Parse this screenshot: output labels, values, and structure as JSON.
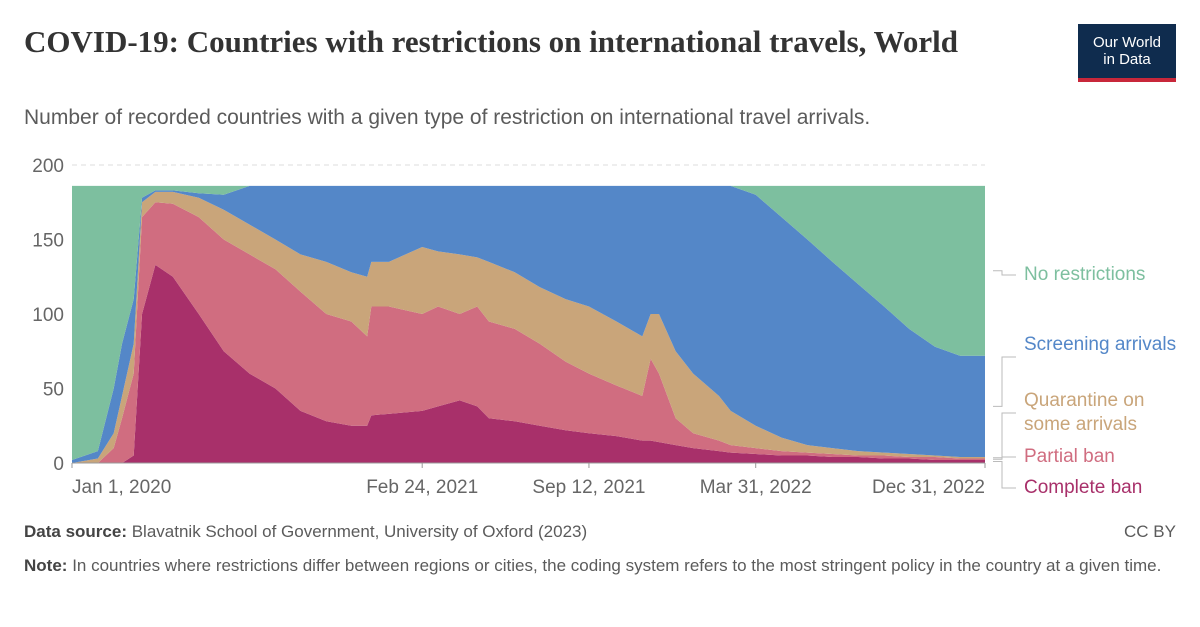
{
  "header": {
    "title": "COVID-19: Countries with restrictions on international travels, World",
    "subtitle": "Number of recorded countries with a given type of restriction on international travel arrivals.",
    "logo": "Our World in Data"
  },
  "chart_data": {
    "type": "stacked-area",
    "x": [
      "2020-01-01",
      "2020-02-01",
      "2020-02-20",
      "2020-03-01",
      "2020-03-15",
      "2020-03-25",
      "2020-04-10",
      "2020-05-01",
      "2020-06-01",
      "2020-07-01",
      "2020-08-01",
      "2020-09-01",
      "2020-10-01",
      "2020-11-01",
      "2020-12-01",
      "2020-12-20",
      "2020-12-25",
      "2021-01-15",
      "2021-02-24",
      "2021-03-15",
      "2021-04-10",
      "2021-05-01",
      "2021-05-15",
      "2021-06-15",
      "2021-07-15",
      "2021-08-15",
      "2021-09-12",
      "2021-10-15",
      "2021-11-15",
      "2021-11-25",
      "2021-12-05",
      "2021-12-25",
      "2022-01-15",
      "2022-02-15",
      "2022-03-01",
      "2022-03-31",
      "2022-05-01",
      "2022-06-01",
      "2022-07-01",
      "2022-08-01",
      "2022-09-01",
      "2022-10-01",
      "2022-11-01",
      "2022-12-01",
      "2022-12-31"
    ],
    "xlim": [
      "2020-01-01",
      "2022-12-31"
    ],
    "xticks": [
      {
        "value": "2020-01-01",
        "label": "Jan 1, 2020"
      },
      {
        "value": "2021-02-24",
        "label": "Feb 24, 2021"
      },
      {
        "value": "2021-09-12",
        "label": "Sep 12, 2021"
      },
      {
        "value": "2022-03-31",
        "label": "Mar 31, 2022"
      },
      {
        "value": "2022-12-31",
        "label": "Dec 31, 2022"
      }
    ],
    "ylim": [
      0,
      200
    ],
    "yticks": [
      0,
      50,
      100,
      150,
      200
    ],
    "grid": true,
    "series": [
      {
        "name": "Complete ban",
        "color": "#a8306a",
        "values": [
          0,
          0,
          0,
          0,
          5,
          100,
          133,
          125,
          100,
          75,
          60,
          50,
          35,
          28,
          25,
          25,
          32,
          33,
          35,
          38,
          42,
          38,
          30,
          28,
          25,
          22,
          20,
          18,
          15,
          15,
          14,
          12,
          10,
          8,
          7,
          6,
          5,
          5,
          4,
          4,
          3,
          3,
          2,
          2,
          2
        ]
      },
      {
        "name": "Partial ban",
        "color": "#d06d80",
        "values": [
          0,
          0,
          10,
          30,
          55,
          65,
          42,
          49,
          65,
          75,
          80,
          80,
          80,
          72,
          70,
          60,
          73,
          72,
          65,
          67,
          58,
          67,
          65,
          62,
          55,
          46,
          40,
          34,
          30,
          55,
          46,
          18,
          10,
          7,
          5,
          4,
          3,
          2,
          2,
          1,
          2,
          1,
          2,
          1,
          1
        ]
      },
      {
        "name": "Quarantine on some arrivals",
        "color": "#c9a57a",
        "values": [
          0,
          3,
          10,
          15,
          20,
          10,
          7,
          8,
          13,
          20,
          20,
          20,
          25,
          35,
          33,
          40,
          30,
          30,
          45,
          37,
          40,
          33,
          40,
          38,
          38,
          42,
          45,
          43,
          40,
          30,
          40,
          45,
          40,
          30,
          23,
          15,
          9,
          5,
          4,
          3,
          2,
          2,
          1,
          1,
          1
        ]
      },
      {
        "name": "Screening arrivals",
        "color": "#5487c8",
        "values": [
          2,
          5,
          30,
          35,
          30,
          3,
          1,
          1,
          3,
          10,
          26,
          36,
          46,
          51,
          58,
          61,
          51,
          51,
          41,
          44,
          46,
          48,
          51,
          58,
          68,
          76,
          81,
          91,
          101,
          86,
          86,
          111,
          126,
          141,
          151,
          155,
          148,
          138,
          125,
          112,
          98,
          84,
          73,
          68,
          68
        ]
      },
      {
        "name": "No restrictions",
        "color": "#7dbf9f",
        "values": [
          184,
          178,
          136,
          106,
          76,
          8,
          3,
          3,
          5,
          6,
          0,
          0,
          0,
          0,
          0,
          0,
          0,
          0,
          0,
          0,
          0,
          0,
          0,
          0,
          0,
          0,
          0,
          0,
          0,
          0,
          0,
          0,
          0,
          0,
          0,
          6,
          21,
          36,
          51,
          66,
          81,
          96,
          108,
          114,
          114
        ]
      }
    ]
  },
  "footer": {
    "source_label": "Data source:",
    "source": "Blavatnik School of Government, University of Oxford (2023)",
    "license": "CC BY",
    "note_label": "Note:",
    "note": "In countries where restrictions differ between regions or cities, the coding system refers to the most stringent policy in the country at a given time."
  }
}
